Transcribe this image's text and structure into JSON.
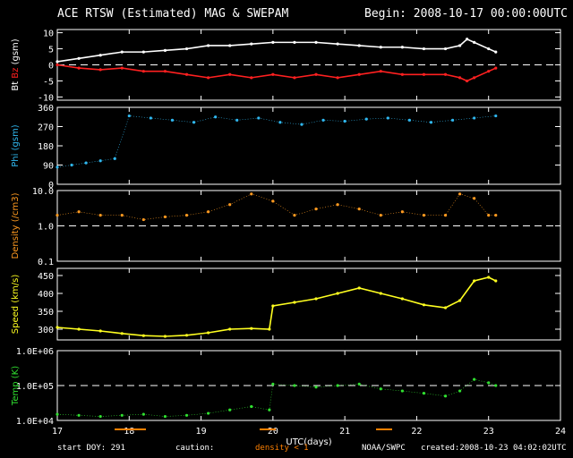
{
  "header": {
    "title": "ACE RTSW (Estimated) MAG & SWEPAM",
    "begin": "Begin: 2008-10-17 00:00:00UTC"
  },
  "footer": {
    "start_doy": "start DOY: 291",
    "caution": "caution:",
    "density_note": "density < 1",
    "noaa": "NOAA/SWPC",
    "created": "created:2008-10-23 04:02:02UTC"
  },
  "colors": {
    "bt": "#ffffff",
    "bz": "#ff2020",
    "phi": "#30b8f0",
    "density": "#ff9a20",
    "speed": "#ffff20",
    "temp": "#30e030",
    "axes": "#ffffff",
    "caution": "#ff8000"
  },
  "chart_data": [
    {
      "type": "line",
      "panel": "mag",
      "ylabel_parts": [
        "Bt",
        "Bz",
        "(gsm)"
      ],
      "ylim": [
        -11,
        11
      ],
      "yticks": [
        -10,
        -5,
        0,
        5,
        10
      ],
      "ref_line": 0,
      "series": [
        {
          "name": "Bt",
          "x": [
            17.0,
            17.3,
            17.6,
            17.9,
            18.2,
            18.5,
            18.8,
            19.1,
            19.4,
            19.7,
            20.0,
            20.3,
            20.6,
            20.9,
            21.2,
            21.5,
            21.8,
            22.1,
            22.4,
            22.6,
            22.7,
            22.8,
            23.0,
            23.1
          ],
          "y": [
            1,
            2,
            3,
            4,
            4,
            4.5,
            5,
            6,
            6,
            6.5,
            7,
            7,
            7,
            6.5,
            6,
            5.5,
            5.5,
            5,
            5,
            6,
            8,
            7,
            5,
            4
          ]
        },
        {
          "name": "Bz",
          "x": [
            17.0,
            17.3,
            17.6,
            17.9,
            18.2,
            18.5,
            18.8,
            19.1,
            19.4,
            19.7,
            20.0,
            20.3,
            20.6,
            20.9,
            21.2,
            21.5,
            21.8,
            22.1,
            22.4,
            22.6,
            22.7,
            22.8,
            23.0,
            23.1
          ],
          "y": [
            0,
            -1,
            -1.5,
            -1,
            -2,
            -2,
            -3,
            -4,
            -3,
            -4,
            -3,
            -4,
            -3,
            -4,
            -3,
            -2,
            -3,
            -3,
            -3,
            -4,
            -5,
            -4,
            -2,
            -1
          ]
        }
      ]
    },
    {
      "type": "scatter",
      "panel": "phi",
      "ylabel": "Phi (gsm)",
      "ylim": [
        0,
        360
      ],
      "yticks": [
        0,
        90,
        180,
        270,
        360
      ],
      "series": [
        {
          "name": "Phi",
          "x": [
            17.0,
            17.2,
            17.4,
            17.6,
            17.8,
            18.0,
            18.3,
            18.6,
            18.9,
            19.2,
            19.5,
            19.8,
            20.1,
            20.4,
            20.7,
            21.0,
            21.3,
            21.6,
            21.9,
            22.2,
            22.5,
            22.8,
            23.1
          ],
          "y": [
            80,
            90,
            100,
            110,
            120,
            320,
            310,
            300,
            290,
            315,
            300,
            310,
            290,
            280,
            300,
            295,
            305,
            310,
            300,
            290,
            300,
            310,
            320
          ]
        }
      ]
    },
    {
      "type": "scatter",
      "panel": "density",
      "ylabel": "Density (/cm3)",
      "scale": "log",
      "ylim": [
        0.1,
        10
      ],
      "yticks": [
        0.1,
        1.0,
        10.0
      ],
      "ytick_labels": [
        "0.1",
        "1.0",
        "10.0"
      ],
      "ref_line": 1.0,
      "series": [
        {
          "name": "Density",
          "x": [
            17.0,
            17.3,
            17.6,
            17.9,
            18.2,
            18.5,
            18.8,
            19.1,
            19.4,
            19.7,
            20.0,
            20.3,
            20.6,
            20.9,
            21.2,
            21.5,
            21.8,
            22.1,
            22.4,
            22.6,
            22.8,
            23.0,
            23.1
          ],
          "y": [
            2,
            2.5,
            2,
            2,
            1.5,
            1.8,
            2,
            2.5,
            4,
            8,
            5,
            2,
            3,
            4,
            3,
            2,
            2.5,
            2,
            2,
            8,
            6,
            2,
            2
          ]
        }
      ]
    },
    {
      "type": "line",
      "panel": "speed",
      "ylabel": "Speed (km/s)",
      "ylim": [
        270,
        470
      ],
      "yticks": [
        300,
        350,
        400,
        450
      ],
      "series": [
        {
          "name": "Speed",
          "x": [
            17.0,
            17.3,
            17.6,
            17.9,
            18.2,
            18.5,
            18.8,
            19.1,
            19.4,
            19.7,
            19.95,
            20.0,
            20.3,
            20.6,
            20.9,
            21.2,
            21.5,
            21.8,
            22.1,
            22.4,
            22.6,
            22.8,
            23.0,
            23.1
          ],
          "y": [
            305,
            300,
            295,
            288,
            282,
            280,
            283,
            290,
            300,
            302,
            300,
            365,
            375,
            385,
            400,
            415,
            400,
            385,
            368,
            360,
            380,
            435,
            445,
            435
          ]
        }
      ]
    },
    {
      "type": "scatter",
      "panel": "temp",
      "ylabel": "Temp (K)",
      "scale": "log",
      "ylim": [
        10000,
        1000000
      ],
      "yticks": [
        10000,
        100000,
        1000000
      ],
      "ytick_labels": [
        "1.0E+04",
        "1.0E+05",
        "1.0E+06"
      ],
      "ref_line": 100000,
      "xlabel": "UTC(days)",
      "xlim": [
        17,
        24
      ],
      "xticks": [
        17,
        18,
        19,
        20,
        21,
        22,
        23,
        24
      ],
      "series": [
        {
          "name": "Temp",
          "x": [
            17.0,
            17.3,
            17.6,
            17.9,
            18.2,
            18.5,
            18.8,
            19.1,
            19.4,
            19.7,
            19.95,
            20.0,
            20.3,
            20.6,
            20.9,
            21.2,
            21.5,
            21.8,
            22.1,
            22.4,
            22.6,
            22.8,
            23.0,
            23.1
          ],
          "y": [
            15000,
            14000,
            13000,
            14000,
            15000,
            13000,
            14000,
            16000,
            20000,
            25000,
            20000,
            110000,
            100000,
            90000,
            100000,
            110000,
            80000,
            70000,
            60000,
            50000,
            70000,
            150000,
            120000,
            100000
          ]
        }
      ]
    }
  ]
}
